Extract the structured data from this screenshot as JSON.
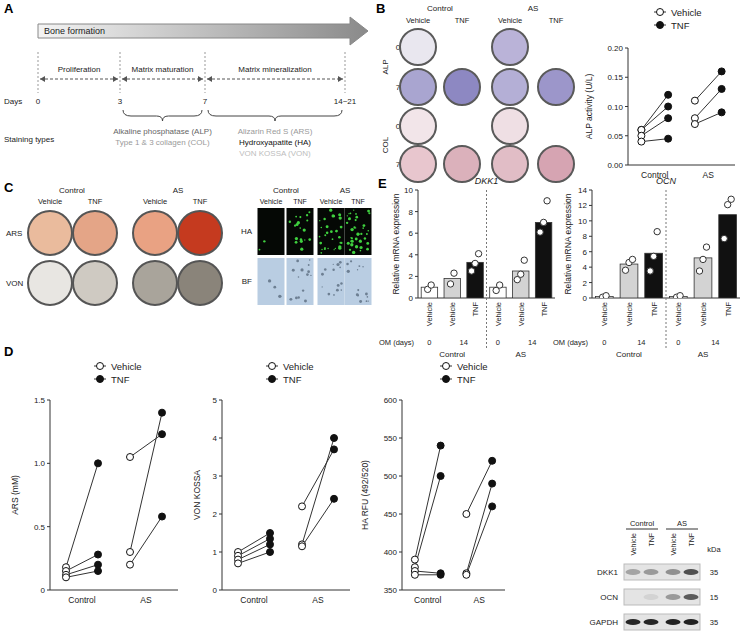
{
  "panels": [
    "A",
    "B",
    "C",
    "D",
    "E"
  ],
  "figure": {
    "timeline": {
      "title": "Bone formation",
      "days_label": "Days",
      "staining_label": "Staining types",
      "days": [
        "0",
        "3",
        "7",
        "14~21"
      ],
      "phases": [
        "Proliferation",
        "Matrix maturation",
        "Matrix mineralization"
      ],
      "stains": [
        [
          "Alkaline phosphatase (ALP)",
          "Type 1 & 3 collagen (COL)"
        ],
        [
          "Alizarin Red S (ARS)",
          "Hydroxyapatite (HA)",
          "VON KOSSA (VON)"
        ]
      ]
    },
    "image_panel_b": {
      "groups": [
        "Control",
        "AS"
      ],
      "conditions": [
        "Vehicle",
        "TNF"
      ],
      "rows": [
        {
          "stain": "ALP",
          "days": [
            "0",
            "7"
          ]
        },
        {
          "stain": "COL",
          "days": [
            "0",
            "7"
          ]
        }
      ]
    },
    "image_panel_c": {
      "groups": [
        "Control",
        "AS"
      ],
      "conditions": [
        "Vehicle",
        "TNF"
      ],
      "rows": [
        "ARS",
        "VON"
      ],
      "fluor_rows": [
        "HA",
        "BF"
      ]
    },
    "western_blot": {
      "groups": [
        "Control",
        "AS"
      ],
      "conditions": [
        "Vehicle",
        "TNF"
      ],
      "rows": [
        "DKK1",
        "OCN",
        "GAPDH"
      ],
      "kda_label": "kDa",
      "kda": [
        35,
        15,
        35
      ]
    }
  },
  "chart_data": [
    {
      "type": "paired_dot",
      "y_label": "ALP activity (U/L)",
      "categories": [
        "Control",
        "AS"
      ],
      "legend": "top-right",
      "series": [
        {
          "name": "Vehicle",
          "marker": "open_circle",
          "values": [
            [
              0.06,
              0.06,
              0.05,
              0.04
            ],
            [
              0.11,
              0.08,
              0.07
            ]
          ]
        },
        {
          "name": "TNF",
          "marker": "filled_circle",
          "values": [
            [
              0.12,
              0.1,
              0.08,
              0.045
            ],
            [
              0.16,
              0.13,
              0.09
            ]
          ]
        }
      ],
      "ylim": [
        0,
        0.2
      ],
      "yticks": [
        {
          "value": 0,
          "label": "0.00"
        },
        {
          "value": 0.05,
          "label": "0.05"
        },
        {
          "value": 0.1,
          "label": "0.10"
        },
        {
          "value": 0.15,
          "label": "0.15"
        },
        {
          "value": 0.2,
          "label": "0.20"
        }
      ]
    },
    {
      "type": "paired_dot",
      "y_label": "ARS (mM)",
      "categories": [
        "Control",
        "AS"
      ],
      "legend": "top-right",
      "series": [
        {
          "name": "Vehicle",
          "marker": "open_circle",
          "values": [
            [
              0.18,
              0.15,
              0.12,
              0.1
            ],
            [
              1.05,
              0.3,
              0.2
            ]
          ]
        },
        {
          "name": "TNF",
          "marker": "filled_circle",
          "values": [
            [
              1.0,
              0.28,
              0.2,
              0.15
            ],
            [
              1.23,
              1.4,
              0.58
            ]
          ]
        }
      ],
      "ylim": [
        0,
        1.5
      ],
      "yticks": [
        0,
        0.5,
        {
          "value": 1,
          "label": "1.0"
        },
        1.5
      ]
    },
    {
      "type": "paired_dot",
      "y_label": "VON KOSSA",
      "categories": [
        "Control",
        "AS"
      ],
      "legend": "top-right",
      "series": [
        {
          "name": "Vehicle",
          "marker": "open_circle",
          "values": [
            [
              1.0,
              0.9,
              0.8,
              0.7
            ],
            [
              2.2,
              1.2,
              1.15
            ]
          ]
        },
        {
          "name": "TNF",
          "marker": "filled_circle",
          "values": [
            [
              1.5,
              1.35,
              1.2,
              1.0
            ],
            [
              3.7,
              4.0,
              2.4
            ]
          ]
        }
      ],
      "ylim": [
        0,
        5
      ],
      "yticks": [
        0,
        1,
        2,
        3,
        4,
        5
      ]
    },
    {
      "type": "paired_dot",
      "y_label": "HA RFU (492/520)",
      "categories": [
        "Control",
        "AS"
      ],
      "legend": "top-right",
      "series": [
        {
          "name": "Vehicle",
          "marker": "open_circle",
          "values": [
            [
              390,
              380,
              375,
              370
            ],
            [
              450,
              372,
              370
            ]
          ]
        },
        {
          "name": "TNF",
          "marker": "filled_circle",
          "values": [
            [
              540,
              500,
              372,
              370
            ],
            [
              520,
              490,
              460
            ]
          ]
        }
      ],
      "ylim": [
        350,
        600
      ],
      "yticks": [
        350,
        400,
        450,
        500,
        550,
        600
      ]
    },
    {
      "type": "bar",
      "title": "DKK1",
      "y_label": "Relative mRNA expression",
      "categories": [
        "Vehicle",
        "Vehicle",
        "TNF",
        "Vehicle",
        "Vehicle",
        "TNF"
      ],
      "x_row_label": "OM (days)",
      "x_row": [
        0,
        14,
        14,
        0,
        14,
        14
      ],
      "groups": [
        "Control",
        "AS"
      ],
      "colors": [
        "#ffffff",
        "#d3d3d3",
        "#111111",
        "#ffffff",
        "#d3d3d3",
        "#111111"
      ],
      "values": [
        1.0,
        1.8,
        3.3,
        1.0,
        2.5,
        7.0
      ],
      "points": [
        [
          0.8,
          1.2
        ],
        [
          1.3,
          2.3
        ],
        [
          2.5,
          3.2,
          4.1
        ],
        [
          0.7,
          1.2
        ],
        [
          1.7,
          2.2,
          3.5
        ],
        [
          6.1,
          7.0,
          9.0
        ]
      ],
      "ylim": [
        0,
        10
      ],
      "yticks": [
        0,
        2,
        4,
        6,
        8,
        10
      ]
    },
    {
      "type": "bar",
      "title": "OCN",
      "y_label": "Relative mRNA expression",
      "categories": [
        "Vehicle",
        "Vehicle",
        "TNF",
        "Vehicle",
        "Vehicle",
        "TNF"
      ],
      "x_row_label": "OM (days)",
      "x_row": [
        0,
        14,
        14,
        0,
        14,
        14
      ],
      "groups": [
        "Control",
        "AS"
      ],
      "colors": [
        "#ffffff",
        "#d3d3d3",
        "#111111",
        "#ffffff",
        "#d3d3d3",
        "#111111"
      ],
      "values": [
        0.2,
        4.4,
        5.8,
        0.2,
        5.2,
        10.8
      ],
      "points": [
        [
          0.1,
          0.3
        ],
        [
          3.6,
          4.6,
          5.0
        ],
        [
          3.5,
          5.4,
          8.6
        ],
        [
          0.1,
          0.3
        ],
        [
          3.5,
          5.0,
          6.6
        ],
        [
          7.7,
          12.1,
          12.8
        ]
      ],
      "ylim": [
        0,
        14
      ],
      "yticks": [
        0,
        2,
        4,
        6,
        8,
        10,
        12,
        14
      ]
    }
  ]
}
